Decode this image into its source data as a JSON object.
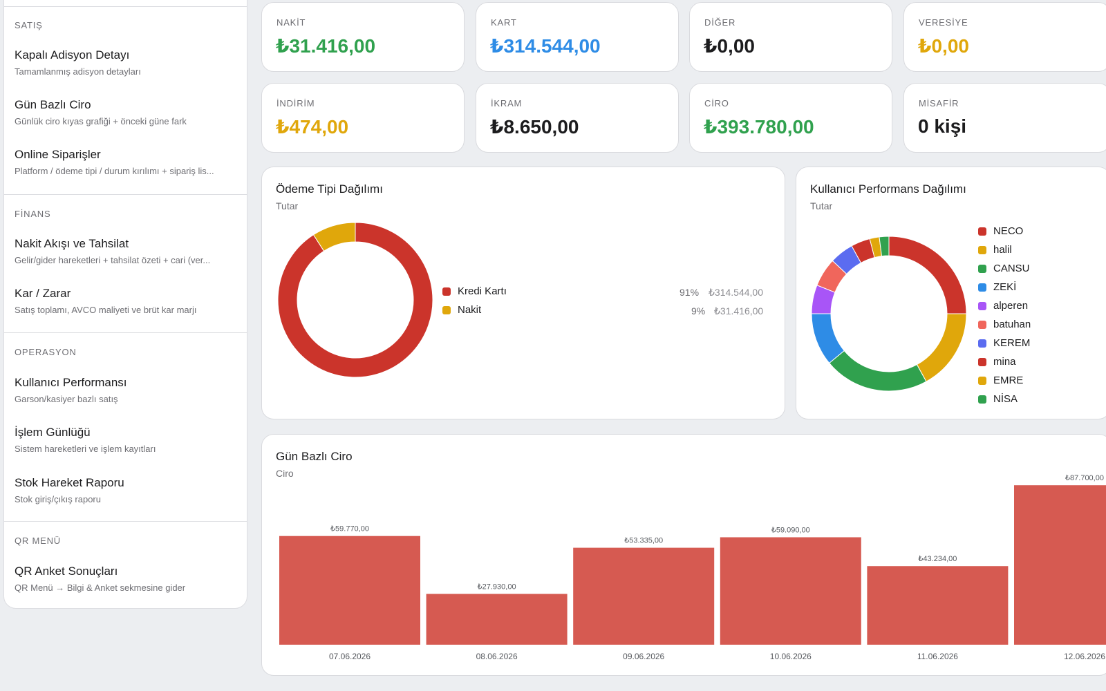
{
  "sidebar": {
    "sections": [
      {
        "title": "SATIŞ",
        "items": [
          {
            "title": "Kapalı Adisyon Detayı",
            "desc": "Tamamlanmış adisyon detayları"
          },
          {
            "title": "Gün Bazlı Ciro",
            "desc": "Günlük ciro kıyas grafiği + önceki güne fark"
          },
          {
            "title": "Online Siparişler",
            "desc": "Platform / ödeme tipi / durum kırılımı + sipariş lis..."
          }
        ]
      },
      {
        "title": "FİNANS",
        "items": [
          {
            "title": "Nakit Akışı ve Tahsilat",
            "desc": "Gelir/gider hareketleri + tahsilat özeti + cari (ver..."
          },
          {
            "title": "Kar / Zarar",
            "desc": "Satış toplamı, AVCO maliyeti ve brüt kar marjı"
          }
        ]
      },
      {
        "title": "OPERASYON",
        "items": [
          {
            "title": "Kullanıcı Performansı",
            "desc": "Garson/kasiyer bazlı satış"
          },
          {
            "title": "İşlem Günlüğü",
            "desc": "Sistem hareketleri ve işlem kayıtları"
          },
          {
            "title": "Stok Hareket Raporu",
            "desc": "Stok giriş/çıkış raporu"
          }
        ]
      },
      {
        "title": "QR MENÜ",
        "items": [
          {
            "title": "QR Anket Sonuçları",
            "desc": "QR Menü → Bilgi & Anket sekmesine gider"
          }
        ]
      }
    ]
  },
  "stats": {
    "nakit": {
      "label": "NAKİT",
      "value": "₺31.416,00"
    },
    "kart": {
      "label": "KART",
      "value": "₺314.544,00"
    },
    "diger": {
      "label": "DİĞER",
      "value": "₺0,00"
    },
    "veresiye": {
      "label": "VERESİYE",
      "value": "₺0,00"
    },
    "indirim": {
      "label": "İNDİRİM",
      "value": "₺474,00"
    },
    "ikram": {
      "label": "İKRAM",
      "value": "₺8.650,00"
    },
    "ciro": {
      "label": "CİRO",
      "value": "₺393.780,00"
    },
    "misafir": {
      "label": "MİSAFİR",
      "value": "0 kişi"
    }
  },
  "colors": {
    "green": "#30a14e",
    "blue": "#2e8ce6",
    "gold": "#e0a70b",
    "red": "#cb342b",
    "bar": "#d65a51"
  },
  "payment_panel": {
    "title": "Ödeme Tipi Dağılımı",
    "subtitle": "Tutar"
  },
  "user_panel": {
    "title": "Kullanıcı Performans Dağılımı",
    "subtitle": "Tutar"
  },
  "daily_panel": {
    "title": "Gün Bazlı Ciro",
    "subtitle": "Ciro"
  },
  "chart_data": [
    {
      "type": "pie",
      "title": "Ödeme Tipi Dağılımı",
      "subtitle": "Tutar",
      "slices": [
        {
          "name": "Kredi Kartı",
          "percent": "91%",
          "amount": "₺314.544,00",
          "value": 314544,
          "color": "#cb342b"
        },
        {
          "name": "Nakit",
          "percent": "9%",
          "amount": "₺31.416,00",
          "value": 31416,
          "color": "#e0a70b"
        }
      ]
    },
    {
      "type": "pie",
      "title": "Kullanıcı Performans Dağılımı",
      "subtitle": "Tutar",
      "slices": [
        {
          "name": "NECO",
          "value": 25,
          "color": "#cb342b"
        },
        {
          "name": "halil",
          "value": 17,
          "color": "#e0a70b"
        },
        {
          "name": "CANSU",
          "value": 22,
          "color": "#30a14e"
        },
        {
          "name": "ZEKİ",
          "value": 11,
          "color": "#2e8ce6"
        },
        {
          "name": "alperen",
          "value": 6,
          "color": "#a855f7"
        },
        {
          "name": "batuhan",
          "value": 6,
          "color": "#f0665c"
        },
        {
          "name": "KEREM",
          "value": 5,
          "color": "#5b6cf0"
        },
        {
          "name": "mina",
          "value": 4,
          "color": "#cb342b"
        },
        {
          "name": "EMRE",
          "value": 2,
          "color": "#e0a70b"
        },
        {
          "name": "NİSA",
          "value": 2,
          "color": "#30a14e"
        }
      ]
    },
    {
      "type": "bar",
      "title": "Gün Bazlı Ciro",
      "subtitle": "Ciro",
      "categories": [
        "07.06.2026",
        "08.06.2026",
        "09.06.2026",
        "10.06.2026",
        "11.06.2026",
        "12.06.2026"
      ],
      "values": [
        59770,
        27930,
        53335,
        59090,
        43234,
        87700
      ],
      "labels": [
        "₺59.770,00",
        "₺27.930,00",
        "₺53.335,00",
        "₺59.090,00",
        "₺43.234,00",
        "₺87.700,00"
      ]
    }
  ]
}
